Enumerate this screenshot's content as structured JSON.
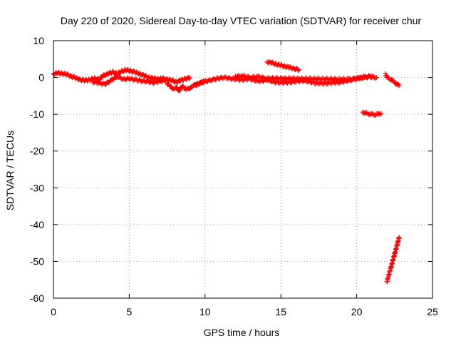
{
  "chart_data": {
    "type": "scatter",
    "title": "Day 220 of 2020, Sidereal Day-to-day VTEC variation (SDTVAR) for receiver chur",
    "xlabel": "GPS time / hours",
    "ylabel": "SDTVAR / TECUs",
    "xlim": [
      0,
      25
    ],
    "ylim": [
      -60,
      10
    ],
    "xticks": [
      0,
      5,
      10,
      15,
      20,
      25
    ],
    "yticks": [
      -60,
      -50,
      -40,
      -30,
      -20,
      -10,
      0,
      10
    ],
    "xtick_labels": [
      "0",
      "5",
      "10",
      "15",
      "20",
      "25"
    ],
    "ytick_labels": [
      "-60",
      "-50",
      "-40",
      "-30",
      "-20",
      "-10",
      "0",
      "10"
    ],
    "grid": true,
    "marker": "+",
    "marker_color": "#ff0000",
    "series": [
      {
        "name": "segment-main-1",
        "x": [
          0.0,
          0.3,
          0.6,
          0.9,
          1.2,
          1.5,
          1.8,
          2.1,
          2.4,
          2.7,
          3.0,
          3.3,
          3.6,
          3.9,
          4.2,
          4.5,
          4.8,
          5.1,
          5.4,
          5.7,
          6.0,
          6.3,
          6.6,
          6.9,
          7.2,
          7.5,
          7.8,
          8.1,
          8.4,
          8.7,
          9.0
        ],
        "y": [
          1.0,
          1.2,
          1.1,
          0.8,
          0.3,
          -0.2,
          -0.6,
          -0.8,
          -0.6,
          -0.3,
          -0.5,
          0.5,
          1.0,
          1.5,
          1.0,
          1.7,
          2.0,
          1.8,
          1.4,
          1.0,
          0.5,
          0.0,
          -0.3,
          -0.4,
          -0.3,
          -0.5,
          -0.8,
          -1.2,
          -0.8,
          -0.3,
          -0.1
        ]
      },
      {
        "name": "segment-main-1-low",
        "x": [
          2.6,
          3.0,
          3.4,
          3.8,
          4.2,
          4.6,
          5.0,
          5.4,
          5.8,
          6.2,
          6.6,
          7.0,
          7.4
        ],
        "y": [
          -1.2,
          -1.5,
          -1.8,
          -0.8,
          0.3,
          -0.5,
          -0.3,
          -0.6,
          -0.9,
          -1.1,
          -1.4,
          -1.0,
          -0.8
        ]
      },
      {
        "name": "segment-dip",
        "x": [
          7.5,
          7.7,
          7.9,
          8.1,
          8.3,
          8.5,
          8.7,
          8.9,
          9.1,
          9.3,
          9.5,
          9.7,
          9.9
        ],
        "y": [
          -1.5,
          -2.5,
          -3.0,
          -2.8,
          -3.5,
          -2.4,
          -3.0,
          -3.2,
          -2.5,
          -2.1,
          -1.8,
          -1.5,
          -1.0
        ]
      },
      {
        "name": "segment-main-2",
        "x": [
          9.3,
          9.7,
          10.1,
          10.5,
          10.9,
          11.3,
          11.7,
          12.1,
          12.5,
          12.9,
          13.3,
          13.7,
          14.1,
          14.5,
          14.9,
          15.3,
          15.7,
          16.1,
          16.5,
          16.9,
          17.3,
          17.7,
          18.1,
          18.5,
          18.9,
          19.3,
          19.7,
          20.1,
          20.5,
          20.9,
          21.3
        ],
        "y": [
          -2.0,
          -1.5,
          -1.0,
          -0.6,
          -0.2,
          0.0,
          -0.3,
          -0.5,
          -0.6,
          -0.3,
          -0.8,
          -1.0,
          -0.6,
          -1.2,
          -1.3,
          -1.4,
          -1.2,
          -1.0,
          -0.8,
          -1.2,
          -1.5,
          -1.6,
          -1.5,
          -1.4,
          -1.3,
          -1.0,
          -0.6,
          -0.2,
          0.0,
          0.2,
          0.0
        ]
      },
      {
        "name": "segment-main-2-upper",
        "x": [
          12.0,
          12.5,
          13.0,
          13.5,
          14.0,
          19.5,
          20.0,
          20.5,
          21.0
        ],
        "y": [
          0.3,
          0.4,
          0.0,
          0.2,
          -0.2,
          -0.5,
          -0.2,
          0.1,
          0.4
        ]
      },
      {
        "name": "segment-upper-arc",
        "x": [
          14.1,
          14.4,
          14.7,
          15.0,
          15.3,
          15.6,
          15.9,
          16.2
        ],
        "y": [
          4.2,
          4.0,
          3.6,
          3.3,
          3.0,
          2.7,
          2.4,
          2.1
        ]
      },
      {
        "name": "segment-end-right",
        "x": [
          21.9,
          22.0,
          22.2,
          22.4,
          22.6,
          22.8
        ],
        "y": [
          1.0,
          0.0,
          -0.4,
          -1.0,
          -1.6,
          -2.2
        ]
      },
      {
        "name": "segment-minus-ten",
        "x": [
          20.4,
          20.6,
          20.8,
          21.0,
          21.2,
          21.4,
          21.6
        ],
        "y": [
          -9.4,
          -9.7,
          -9.9,
          -10.0,
          -10.1,
          -10.0,
          -9.8
        ]
      },
      {
        "name": "segment-steep-drop",
        "x": [
          22.0,
          22.1,
          22.2,
          22.3,
          22.4,
          22.5,
          22.6,
          22.7,
          22.8
        ],
        "y": [
          -55.5,
          -54.0,
          -52.5,
          -51.0,
          -49.5,
          -48.0,
          -46.5,
          -45.0,
          -43.5
        ]
      }
    ]
  }
}
